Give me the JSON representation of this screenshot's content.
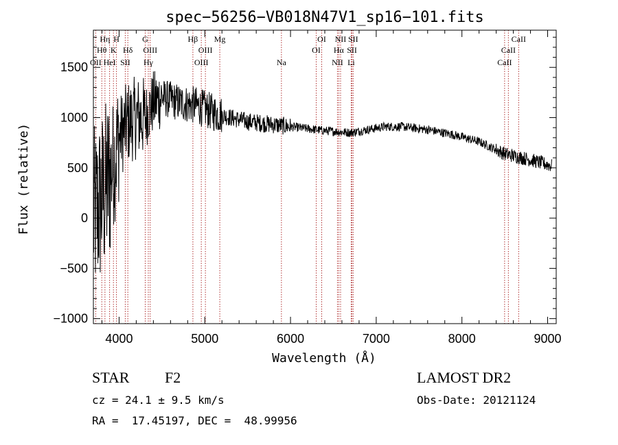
{
  "chart_data": {
    "type": "line",
    "title": "spec−56256−VB018N47V1_sp16−101.fits",
    "xlabel": "Wavelength (Å)",
    "ylabel": "Flux (relative)",
    "xlim": [
      3700,
      9100
    ],
    "ylim": [
      -1050,
      1870
    ],
    "x_ticks": [
      4000,
      5000,
      6000,
      7000,
      8000,
      9000
    ],
    "y_ticks": [
      -1000,
      -500,
      0,
      500,
      1000,
      1500
    ],
    "y_tick_labels": [
      "−1000",
      "−500",
      "0",
      "500",
      "1000",
      "1500"
    ],
    "grid": false,
    "line_color": "#000000",
    "marker_color": "#b03030",
    "spectrum_shape": [
      {
        "x": 3700,
        "y": 0
      },
      {
        "x": 3850,
        "y": 300
      },
      {
        "x": 3950,
        "y": 600
      },
      {
        "x": 4000,
        "y": 800
      },
      {
        "x": 4100,
        "y": 950
      },
      {
        "x": 4200,
        "y": 1000
      },
      {
        "x": 4300,
        "y": 1000
      },
      {
        "x": 4400,
        "y": 1150
      },
      {
        "x": 4500,
        "y": 1200
      },
      {
        "x": 4700,
        "y": 1150
      },
      {
        "x": 4900,
        "y": 1120
      },
      {
        "x": 5100,
        "y": 1050
      },
      {
        "x": 5300,
        "y": 1000
      },
      {
        "x": 5500,
        "y": 960
      },
      {
        "x": 5800,
        "y": 930
      },
      {
        "x": 6100,
        "y": 900
      },
      {
        "x": 6400,
        "y": 870
      },
      {
        "x": 6700,
        "y": 850
      },
      {
        "x": 6900,
        "y": 880
      },
      {
        "x": 7100,
        "y": 910
      },
      {
        "x": 7300,
        "y": 910
      },
      {
        "x": 7600,
        "y": 880
      },
      {
        "x": 7900,
        "y": 830
      },
      {
        "x": 8200,
        "y": 760
      },
      {
        "x": 8500,
        "y": 640
      },
      {
        "x": 8800,
        "y": 580
      },
      {
        "x": 9050,
        "y": 520
      }
    ],
    "spectral_lines": [
      {
        "label": "OII",
        "x": 3727,
        "row": 3
      },
      {
        "label": "Hθ",
        "x": 3798,
        "row": 2
      },
      {
        "label": "Hη",
        "x": 3835,
        "row": 1
      },
      {
        "label": "HeI",
        "x": 3889,
        "row": 3
      },
      {
        "label": "K",
        "x": 3934,
        "row": 2
      },
      {
        "label": "H",
        "x": 3969,
        "row": 1
      },
      {
        "label": "SII",
        "x": 4072,
        "row": 3
      },
      {
        "label": "Hδ",
        "x": 4102,
        "row": 2
      },
      {
        "label": "G",
        "x": 4305,
        "row": 1
      },
      {
        "label": "Hγ",
        "x": 4341,
        "row": 3
      },
      {
        "label": "OIII",
        "x": 4363,
        "row": 2
      },
      {
        "label": "Hβ",
        "x": 4861,
        "row": 1
      },
      {
        "label": "OIII",
        "x": 4959,
        "row": 3
      },
      {
        "label": "OIII",
        "x": 5007,
        "row": 2
      },
      {
        "label": "Mg",
        "x": 5175,
        "row": 1
      },
      {
        "label": "Na",
        "x": 5894,
        "row": 3
      },
      {
        "label": "OI",
        "x": 6300,
        "row": 2
      },
      {
        "label": "OI",
        "x": 6364,
        "row": 1
      },
      {
        "label": "NII",
        "x": 6548,
        "row": 3
      },
      {
        "label": "Hα",
        "x": 6563,
        "row": 2
      },
      {
        "label": "NII",
        "x": 6584,
        "row": 1
      },
      {
        "label": "Li",
        "x": 6708,
        "row": 3
      },
      {
        "label": "SII",
        "x": 6717,
        "row": 2
      },
      {
        "label": "SII",
        "x": 6731,
        "row": 1
      },
      {
        "label": "CaII",
        "x": 8498,
        "row": 3
      },
      {
        "label": "CaII",
        "x": 8542,
        "row": 2
      },
      {
        "label": "CaII",
        "x": 8662,
        "row": 1
      }
    ]
  },
  "info": {
    "class": "STAR",
    "subclass": "F2",
    "survey": "LAMOST DR2",
    "cz": "cz = 24.1 ± 9.5 km/s",
    "obs_date": "Obs-Date: 20121124",
    "radec": "RA =  17.45197, DEC =  48.99956"
  }
}
